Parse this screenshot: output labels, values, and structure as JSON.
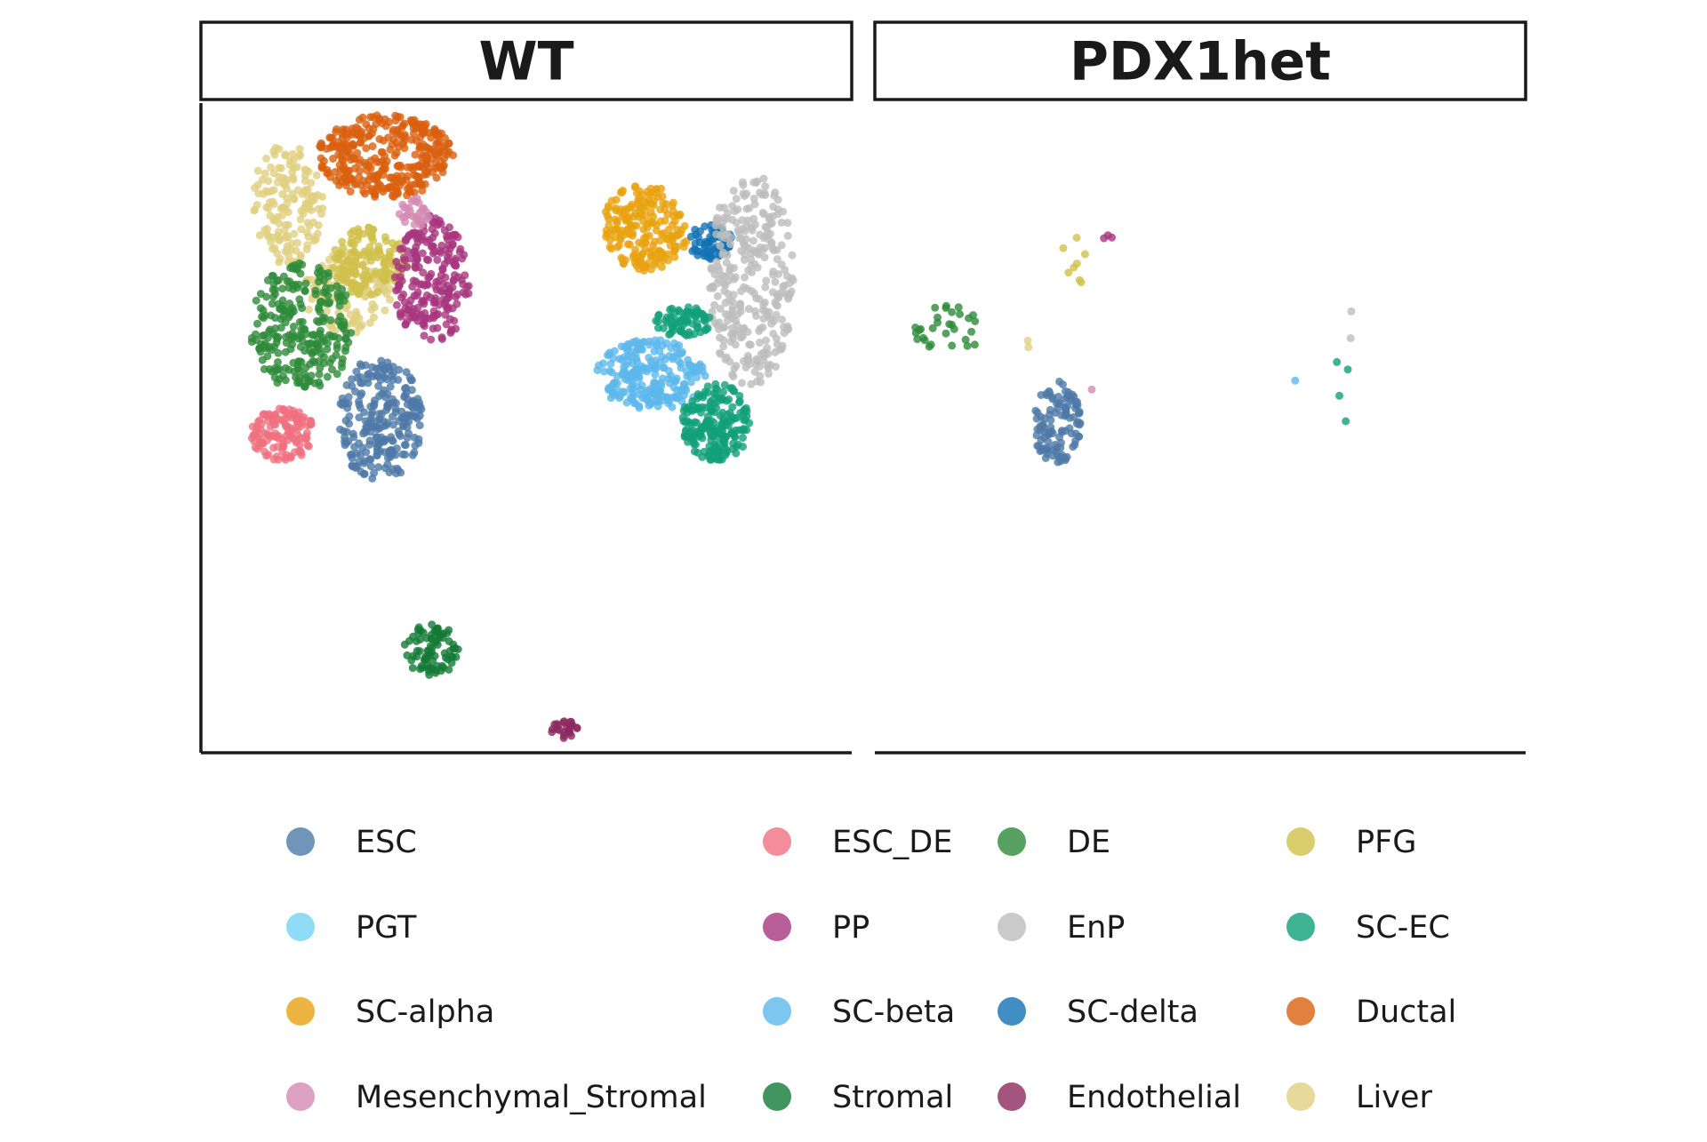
{
  "chart_data": {
    "type": "scatter",
    "title": "",
    "xlabel": "",
    "ylabel": "",
    "facets": [
      "WT",
      "PDX1het"
    ],
    "x_range": [
      -12,
      12
    ],
    "y_range": [
      -10,
      12
    ],
    "axes_visible": false,
    "grid": false,
    "legend_position": "bottom",
    "legend_columns": 4,
    "point_alpha": 0.8,
    "legend": [
      {
        "key": "ESC",
        "label": "ESC",
        "color": "#4E79A7"
      },
      {
        "key": "ESC_DE",
        "label": "ESC_DE",
        "color": "#F0707F"
      },
      {
        "key": "DE",
        "label": "DE",
        "color": "#2E8B3A"
      },
      {
        "key": "PFG",
        "label": "PFG",
        "color": "#CFC04A"
      },
      {
        "key": "PGT",
        "label": "PGT",
        "color": "#74D2F2"
      },
      {
        "key": "PP",
        "label": "PP",
        "color": "#A8367E"
      },
      {
        "key": "EnP",
        "label": "EnP",
        "color": "#BDBDBD"
      },
      {
        "key": "SC-EC",
        "label": "SC-EC",
        "color": "#12A07A"
      },
      {
        "key": "SC-alpha",
        "label": "SC-alpha",
        "color": "#E8A210"
      },
      {
        "key": "SC-beta",
        "label": "SC-beta",
        "color": "#5CB8EB"
      },
      {
        "key": "SC-delta",
        "label": "SC-delta",
        "color": "#1272B3"
      },
      {
        "key": "Ductal",
        "label": "Ductal",
        "color": "#D9600F"
      },
      {
        "key": "Mesenchymal_Stromal",
        "label": "Mesenchymal_Stromal",
        "color": "#D48BB4"
      },
      {
        "key": "Stromal",
        "label": "Stromal",
        "color": "#137A36"
      },
      {
        "key": "Endothelial",
        "label": "Endothelial",
        "color": "#8C2960"
      },
      {
        "key": "Liver",
        "label": "Liver",
        "color": "#E0D080"
      }
    ],
    "clusters": {
      "WT": [
        {
          "group": "Ductal",
          "cx": -5.2,
          "cy": 10.2,
          "rx": 2.5,
          "ry": 1.4,
          "n": 340
        },
        {
          "group": "Liver",
          "cx": -8.8,
          "cy": 8.6,
          "rx": 1.3,
          "ry": 2.1,
          "n": 150
        },
        {
          "group": "Liver",
          "cx": -6.6,
          "cy": 5.6,
          "rx": 1.6,
          "ry": 1.4,
          "n": 120
        },
        {
          "group": "PFG",
          "cx": -5.8,
          "cy": 6.6,
          "rx": 1.4,
          "ry": 1.2,
          "n": 140
        },
        {
          "group": "PP",
          "cx": -3.5,
          "cy": 6.0,
          "rx": 1.4,
          "ry": 2.2,
          "n": 220
        },
        {
          "group": "DE",
          "cx": -8.3,
          "cy": 4.4,
          "rx": 1.9,
          "ry": 2.2,
          "n": 260
        },
        {
          "group": "ESC",
          "cx": -5.4,
          "cy": 1.3,
          "rx": 1.6,
          "ry": 2.1,
          "n": 240
        },
        {
          "group": "ESC_DE",
          "cx": -9.0,
          "cy": 0.8,
          "rx": 1.2,
          "ry": 0.9,
          "n": 130
        },
        {
          "group": "Mesenchymal_Stromal",
          "cx": -4.1,
          "cy": 8.3,
          "rx": 0.6,
          "ry": 0.5,
          "n": 30
        },
        {
          "group": "Stromal",
          "cx": -3.5,
          "cy": -6.5,
          "rx": 1.0,
          "ry": 0.9,
          "n": 80
        },
        {
          "group": "Endothelial",
          "cx": 1.4,
          "cy": -9.2,
          "rx": 0.5,
          "ry": 0.3,
          "n": 25
        },
        {
          "group": "SC-alpha",
          "cx": 4.4,
          "cy": 7.8,
          "rx": 1.6,
          "ry": 1.5,
          "n": 200
        },
        {
          "group": "SC-delta",
          "cx": 6.8,
          "cy": 7.3,
          "rx": 0.8,
          "ry": 0.6,
          "n": 60
        },
        {
          "group": "EnP",
          "cx": 8.3,
          "cy": 6.0,
          "rx": 1.6,
          "ry": 3.6,
          "n": 300
        },
        {
          "group": "SC-beta",
          "cx": 4.6,
          "cy": 2.8,
          "rx": 2.0,
          "ry": 1.2,
          "n": 230
        },
        {
          "group": "SC-EC",
          "cx": 7.0,
          "cy": 1.2,
          "rx": 1.3,
          "ry": 1.3,
          "n": 200
        },
        {
          "group": "SC-EC",
          "cx": 5.8,
          "cy": 4.6,
          "rx": 1.1,
          "ry": 0.5,
          "n": 70
        }
      ],
      "PDX1het": [
        {
          "group": "ESC",
          "cx": -5.3,
          "cy": 1.2,
          "rx": 0.9,
          "ry": 1.4,
          "n": 110
        },
        {
          "group": "DE",
          "cx": -9.3,
          "cy": 4.3,
          "rx": 1.3,
          "ry": 0.9,
          "n": 30
        },
        {
          "group": "PFG",
          "cx": -4.8,
          "cy": 6.2,
          "rx": 0.6,
          "ry": 2.0,
          "n": 8
        },
        {
          "group": "PP",
          "cx": -3.1,
          "cy": 7.4,
          "rx": 0.5,
          "ry": 0.2,
          "n": 3
        },
        {
          "group": "SC-EC",
          "cx": 5.2,
          "cy": 2.1,
          "rx": 0.3,
          "ry": 1.5,
          "n": 4
        },
        {
          "group": "EnP",
          "cx": 5.6,
          "cy": 4.4,
          "rx": 0.2,
          "ry": 0.6,
          "n": 2
        },
        {
          "group": "SC-beta",
          "cx": 3.5,
          "cy": 2.6,
          "rx": 0.0,
          "ry": 0.0,
          "n": 1
        },
        {
          "group": "Mesenchymal_Stromal",
          "cx": -4.0,
          "cy": 2.3,
          "rx": 0.0,
          "ry": 0.0,
          "n": 1
        },
        {
          "group": "Liver",
          "cx": -6.3,
          "cy": 3.8,
          "rx": 0.3,
          "ry": 0.2,
          "n": 2
        }
      ]
    }
  }
}
